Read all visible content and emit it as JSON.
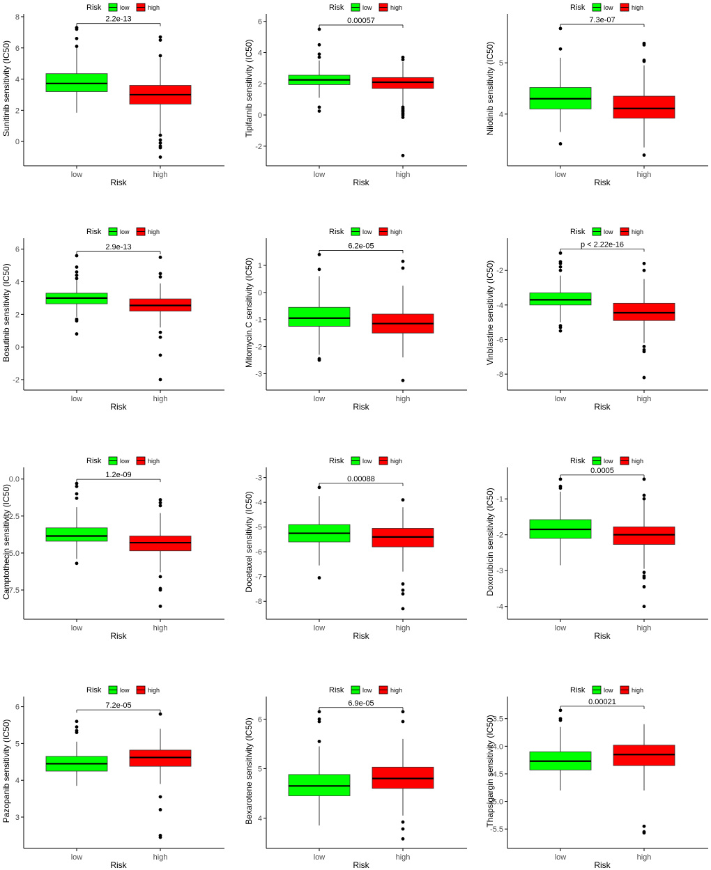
{
  "colors": {
    "low": "#00ff00",
    "high": "#ff0000",
    "median": "#000000",
    "axis": "#000000"
  },
  "legend": {
    "title": "Risk",
    "items": [
      "low",
      "high"
    ]
  },
  "chart_data": [
    {
      "type": "box",
      "ylabel": "Sunitinib sensitivity (IC50)",
      "xlabel": "Risk",
      "categories": [
        "low",
        "high"
      ],
      "pvalue": "2.2e-13",
      "ylim": [
        -1.2,
        8
      ],
      "yticks": [
        "0",
        "2",
        "4",
        "6",
        "8"
      ],
      "boxes": [
        {
          "q1": 3.2,
          "median": 3.72,
          "q3": 4.35,
          "whisker_low": 1.85,
          "whisker_high": 6.0,
          "outliers": [
            6.1,
            6.6,
            7.2,
            7.3
          ]
        },
        {
          "q1": 2.4,
          "median": 3.0,
          "q3": 3.6,
          "whisker_low": 0.5,
          "whisker_high": 5.4,
          "outliers": [
            5.5,
            6.5,
            6.7,
            0.4,
            0.1,
            -0.1,
            -0.3,
            -0.4,
            -1.0
          ]
        }
      ]
    },
    {
      "type": "box",
      "ylabel": "Tipifarnib sensitivity (IC50)",
      "xlabel": "Risk",
      "categories": [
        "low",
        "high"
      ],
      "pvalue": "0.00057",
      "ylim": [
        -2.9,
        6.3
      ],
      "yticks": [
        "-2",
        "0",
        "2",
        "4",
        "6"
      ],
      "boxes": [
        {
          "q1": 1.95,
          "median": 2.25,
          "q3": 2.55,
          "whisker_low": 1.1,
          "whisker_high": 3.5,
          "outliers": [
            3.7,
            3.9,
            4.5,
            5.5,
            0.5,
            0.25
          ]
        },
        {
          "q1": 1.7,
          "median": 2.1,
          "q3": 2.4,
          "whisker_low": 0.6,
          "whisker_high": 3.4,
          "outliers": [
            3.55,
            3.7,
            0.5,
            0.4,
            0.3,
            0.2,
            0.1,
            0.0,
            -0.15,
            -2.6
          ]
        }
      ]
    },
    {
      "type": "box",
      "ylabel": "Nilotinib sensitivity (IC50)",
      "xlabel": "Risk",
      "categories": [
        "low",
        "high"
      ],
      "pvalue": "7.3e-07",
      "ylim": [
        3.1,
        5.9
      ],
      "yticks": [
        "4",
        "5"
      ],
      "boxes": [
        {
          "q1": 4.1,
          "median": 4.3,
          "q3": 4.52,
          "whisker_low": 3.65,
          "whisker_high": 5.1,
          "outliers": [
            5.27,
            5.67,
            3.42
          ]
        },
        {
          "q1": 3.92,
          "median": 4.11,
          "q3": 4.35,
          "whisker_low": 3.35,
          "whisker_high": 4.95,
          "outliers": [
            5.03,
            5.05,
            5.35,
            5.38,
            3.2
          ]
        }
      ]
    },
    {
      "type": "box",
      "ylabel": "Bosutinib sensitivity (IC50)",
      "xlabel": "Risk",
      "categories": [
        "low",
        "high"
      ],
      "pvalue": "2.9e-13",
      "ylim": [
        -2.3,
        6.5
      ],
      "yticks": [
        "-2",
        "0",
        "2",
        "4",
        "6"
      ],
      "boxes": [
        {
          "q1": 2.65,
          "median": 3.0,
          "q3": 3.3,
          "whisker_low": 1.85,
          "whisker_high": 4.1,
          "outliers": [
            4.2,
            4.4,
            4.6,
            4.9,
            5.6,
            1.7,
            1.6,
            0.8
          ]
        },
        {
          "q1": 2.2,
          "median": 2.55,
          "q3": 2.95,
          "whisker_low": 1.2,
          "whisker_high": 3.9,
          "outliers": [
            4.3,
            4.5,
            5.5,
            0.9,
            0.6,
            -0.5,
            -2.0
          ]
        }
      ]
    },
    {
      "type": "box",
      "ylabel": "Mitomycin.C sensitivity (IC50)",
      "xlabel": "Risk",
      "categories": [
        "low",
        "high"
      ],
      "pvalue": "6.2e-05",
      "ylim": [
        -3.4,
        1.9
      ],
      "yticks": [
        "-3",
        "-2",
        "-1",
        "0",
        "1"
      ],
      "boxes": [
        {
          "q1": -1.25,
          "median": -0.95,
          "q3": -0.55,
          "whisker_low": -2.3,
          "whisker_high": 0.6,
          "outliers": [
            0.85,
            1.4,
            -2.45,
            -2.5
          ]
        },
        {
          "q1": -1.5,
          "median": -1.15,
          "q3": -0.8,
          "whisker_low": -2.4,
          "whisker_high": 0.25,
          "outliers": [
            0.9,
            1.15,
            -3.25
          ]
        }
      ]
    },
    {
      "type": "box",
      "ylabel": "Vinblastine sensitivity (IC50)",
      "xlabel": "Risk",
      "categories": [
        "low",
        "high"
      ],
      "pvalue": "p < 2.22e-16",
      "ylim": [
        -8.6,
        -0.3
      ],
      "yticks": [
        "-8",
        "-6",
        "-4",
        "-2"
      ],
      "boxes": [
        {
          "q1": -4.0,
          "median": -3.7,
          "q3": -3.3,
          "whisker_low": -5.0,
          "whisker_high": -2.3,
          "outliers": [
            -2.0,
            -1.8,
            -1.6,
            -1.5,
            -1.0,
            -5.2,
            -5.3,
            -5.5
          ]
        },
        {
          "q1": -4.9,
          "median": -4.45,
          "q3": -3.9,
          "whisker_low": -6.2,
          "whisker_high": -2.5,
          "outliers": [
            -1.6,
            -2.0,
            -6.4,
            -6.6,
            -6.7,
            -8.2
          ]
        }
      ]
    },
    {
      "type": "box",
      "ylabel": "Camptothecin sensitivity (IC50)",
      "xlabel": "Risk",
      "categories": [
        "low",
        "high"
      ],
      "pvalue": "1.2e-09",
      "ylim": [
        -9.1,
        0.6
      ],
      "yticks": [
        "0.0",
        "-2.5",
        "-5.0",
        "-7.5"
      ],
      "boxes": [
        {
          "q1": -4.2,
          "median": -3.85,
          "q3": -3.3,
          "whisker_low": -5.4,
          "whisker_high": -1.9,
          "outliers": [
            -0.3,
            -0.5,
            -1.0,
            -1.3,
            -5.7
          ]
        },
        {
          "q1": -4.85,
          "median": -4.3,
          "q3": -3.85,
          "whisker_low": -6.3,
          "whisker_high": -2.3,
          "outliers": [
            -1.4,
            -1.6,
            -1.8,
            -6.6,
            -7.4,
            -7.5,
            -8.6
          ]
        }
      ]
    },
    {
      "type": "box",
      "ylabel": "Docetaxel sensitivity (IC50)",
      "xlabel": "Risk",
      "categories": [
        "low",
        "high"
      ],
      "pvalue": "0.00088",
      "ylim": [
        -8.5,
        -2.7
      ],
      "yticks": [
        "-8",
        "-7",
        "-6",
        "-5",
        "-4",
        "-3"
      ],
      "boxes": [
        {
          "q1": -5.6,
          "median": -5.25,
          "q3": -4.9,
          "whisker_low": -6.55,
          "whisker_high": -3.75,
          "outliers": [
            -3.4,
            -7.05
          ]
        },
        {
          "q1": -5.8,
          "median": -5.4,
          "q3": -5.05,
          "whisker_low": -6.8,
          "whisker_high": -4.2,
          "outliers": [
            -3.9,
            -7.3,
            -7.55,
            -7.7,
            -8.3
          ]
        }
      ]
    },
    {
      "type": "box",
      "ylabel": "Doxorubicin sensitivity (IC50)",
      "xlabel": "Risk",
      "categories": [
        "low",
        "high"
      ],
      "pvalue": "0.0005",
      "ylim": [
        -4.2,
        -0.2
      ],
      "yticks": [
        "-4",
        "-3",
        "-2",
        "-1"
      ],
      "boxes": [
        {
          "q1": -2.1,
          "median": -1.85,
          "q3": -1.58,
          "whisker_low": -2.85,
          "whisker_high": -0.8,
          "outliers": [
            -0.45,
            -0.65,
            -0.7
          ]
        },
        {
          "q1": -2.27,
          "median": -2.0,
          "q3": -1.78,
          "whisker_low": -2.95,
          "whisker_high": -1.05,
          "outliers": [
            -0.45,
            -0.9,
            -1.0,
            -3.05,
            -3.15,
            -3.2,
            -3.45,
            -4.0
          ]
        }
      ]
    },
    {
      "type": "box",
      "ylabel": "Pazopanib sensitivity (IC50)",
      "xlabel": "Risk",
      "categories": [
        "low",
        "high"
      ],
      "pvalue": "7.2e-05",
      "ylim": [
        2.3,
        6.2
      ],
      "yticks": [
        "3",
        "4",
        "5",
        "6"
      ],
      "boxes": [
        {
          "q1": 4.25,
          "median": 4.45,
          "q3": 4.65,
          "whisker_low": 3.85,
          "whisker_high": 5.05,
          "outliers": [
            5.3,
            5.35,
            5.45,
            5.6
          ]
        },
        {
          "q1": 4.38,
          "median": 4.62,
          "q3": 4.82,
          "whisker_low": 3.9,
          "whisker_high": 5.4,
          "outliers": [
            5.8,
            3.55,
            3.2,
            2.5,
            2.45
          ]
        }
      ]
    },
    {
      "type": "box",
      "ylabel": "Bexarotene sensitivity (IC50)",
      "xlabel": "Risk",
      "categories": [
        "low",
        "high"
      ],
      "pvalue": "6.9e-05",
      "ylim": [
        3.5,
        6.4
      ],
      "yticks": [
        "4",
        "5",
        "6"
      ],
      "boxes": [
        {
          "q1": 4.45,
          "median": 4.65,
          "q3": 4.88,
          "whisker_low": 3.85,
          "whisker_high": 5.45,
          "outliers": [
            5.55,
            5.95,
            6.0,
            6.15
          ]
        },
        {
          "q1": 4.6,
          "median": 4.8,
          "q3": 5.03,
          "whisker_low": 4.05,
          "whisker_high": 5.6,
          "outliers": [
            5.95,
            6.15,
            3.92,
            3.78,
            3.58
          ]
        }
      ]
    },
    {
      "type": "box",
      "ylabel": "Thapsigargin sensitivity (IC50)",
      "xlabel": "Risk",
      "categories": [
        "low",
        "high"
      ],
      "pvalue": "0.00021",
      "ylim": [
        -5.75,
        -3.15
      ],
      "yticks": [
        "-3.5",
        "-4.0",
        "-4.5",
        "-5.0",
        "-5.5"
      ],
      "boxes": [
        {
          "q1": -4.43,
          "median": -4.27,
          "q3": -4.1,
          "whisker_low": -4.8,
          "whisker_high": -3.65,
          "outliers": [
            -3.35,
            -3.5,
            -3.53
          ]
        },
        {
          "q1": -4.35,
          "median": -4.15,
          "q3": -3.98,
          "whisker_low": -4.8,
          "whisker_high": -3.6,
          "outliers": [
            -5.45,
            -5.55,
            -5.57
          ]
        }
      ]
    }
  ]
}
